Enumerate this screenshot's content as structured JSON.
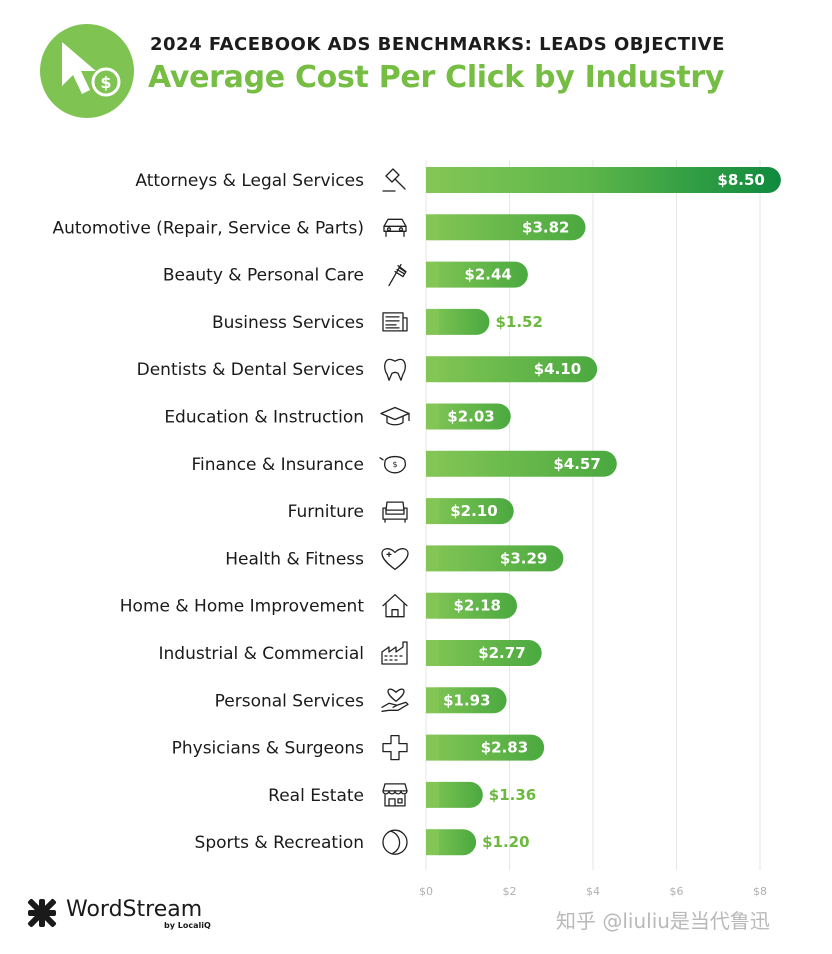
{
  "header": {
    "subtitle": "2024 FACEBOOK ADS BENCHMARKS: LEADS OBJECTIVE",
    "badge_icon": "cursor-dollar-icon"
  },
  "colors": {
    "accent": "#75bd43",
    "bar_light": "#7fc352",
    "bar_dark": "#0f8a3e",
    "grid": "#e6e6e6"
  },
  "chart_data": {
    "type": "bar",
    "orientation": "horizontal",
    "title": "Average Cost Per Click by Industry",
    "xlabel": "",
    "ylabel": "",
    "xlim": [
      0,
      8
    ],
    "ticks": [
      0,
      2,
      4,
      6,
      8
    ],
    "tick_labels": [
      "$0",
      "$2",
      "$4",
      "$6",
      "$8"
    ],
    "grid": true,
    "categories": [
      "Attorneys & Legal Services",
      "Automotive (Repair, Service & Parts)",
      "Beauty & Personal Care",
      "Business Services",
      "Dentists & Dental Services",
      "Education & Instruction",
      "Finance & Insurance",
      "Furniture",
      "Health & Fitness",
      "Home & Home Improvement",
      "Industrial & Commercial",
      "Personal Services",
      "Physicians & Surgeons",
      "Real Estate",
      "Sports & Recreation"
    ],
    "icons": [
      "gavel-icon",
      "car-icon",
      "comb-icon",
      "newspaper-icon",
      "tooth-icon",
      "graduation-cap-icon",
      "piggy-bank-icon",
      "armchair-icon",
      "heart-icon",
      "house-icon",
      "factory-icon",
      "heart-hand-icon",
      "medical-cross-icon",
      "storefront-icon",
      "ball-icon"
    ],
    "values": [
      8.5,
      3.82,
      2.44,
      1.52,
      4.1,
      2.03,
      4.57,
      2.1,
      3.29,
      2.18,
      2.77,
      1.93,
      2.83,
      1.36,
      1.2
    ],
    "value_labels": [
      "$8.50",
      "$3.82",
      "$2.44",
      "$1.52",
      "$4.10",
      "$2.03",
      "$4.57",
      "$2.10",
      "$3.29",
      "$2.18",
      "$2.77",
      "$1.93",
      "$2.83",
      "$1.36",
      "$1.20"
    ]
  },
  "footer": {
    "brand": "WordStream",
    "brand_by": "by LocaliQ",
    "logo_icon": "wordstream-logo-icon",
    "watermark": "知乎 @liuliu是当代鲁迅"
  }
}
